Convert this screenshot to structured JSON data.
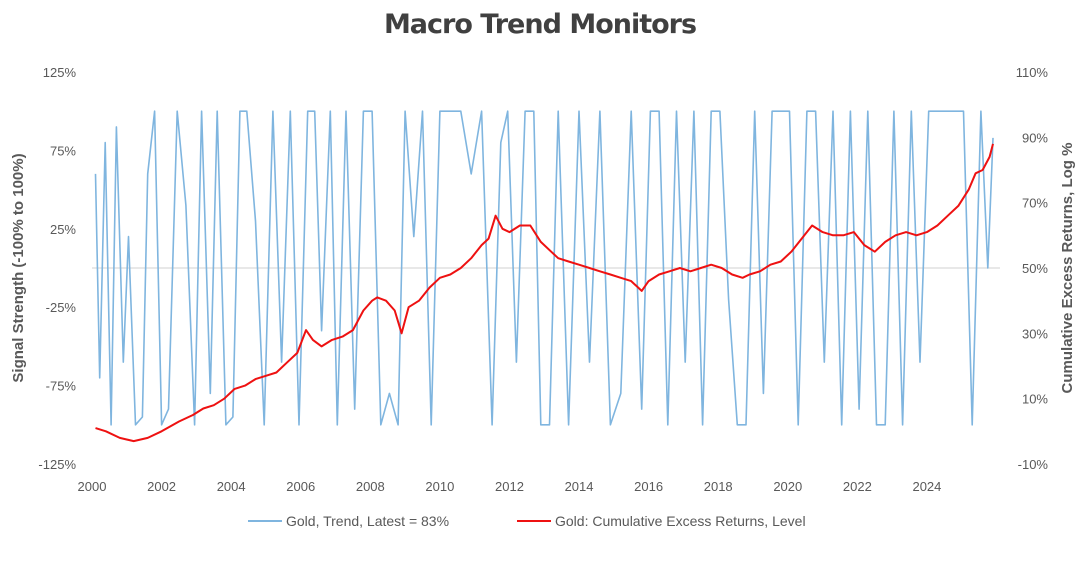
{
  "chart_data": {
    "type": "line",
    "title": "Macro Trend Monitors",
    "ylabel_left": "Signal Strength (-100% to 100%)",
    "ylabel_right": "Cumulative Excess Returns, Log %",
    "left_axis": {
      "range": [
        -125,
        125
      ],
      "ticks": [
        -125,
        -75,
        -25,
        25,
        75,
        125
      ],
      "tick_labels": [
        "-125%",
        "-75%",
        "-25%",
        "25%",
        "75%",
        "125%"
      ]
    },
    "right_axis": {
      "range": [
        -10,
        110
      ],
      "ticks": [
        -10,
        10,
        30,
        50,
        70,
        90,
        110
      ],
      "tick_labels": [
        "-10%",
        "10%",
        "30%",
        "50%",
        "70%",
        "90%",
        "110%"
      ]
    },
    "x_axis": {
      "range": [
        2000,
        2026.1
      ],
      "ticks": [
        2000,
        2002,
        2004,
        2006,
        2008,
        2010,
        2012,
        2014,
        2016,
        2018,
        2020,
        2022,
        2024
      ],
      "tick_labels": [
        "2000",
        "2002",
        "2004",
        "2006",
        "2008",
        "2010",
        "2012",
        "2014",
        "2016",
        "2018",
        "2020",
        "2022",
        "2024"
      ]
    },
    "series": [
      {
        "name": "Gold, Trend, Latest = 83%",
        "axis": "left",
        "color": "#7fb5df",
        "x": [
          2000.1,
          2000.22,
          2000.38,
          2000.55,
          2000.7,
          2000.9,
          2001.05,
          2001.25,
          2001.45,
          2001.6,
          2001.8,
          2002.0,
          2002.2,
          2002.45,
          2002.7,
          2002.95,
          2003.15,
          2003.4,
          2003.6,
          2003.85,
          2004.05,
          2004.25,
          2004.45,
          2004.7,
          2004.95,
          2005.2,
          2005.45,
          2005.7,
          2005.95,
          2006.2,
          2006.4,
          2006.6,
          2006.85,
          2007.05,
          2007.3,
          2007.55,
          2007.8,
          2008.05,
          2008.3,
          2008.55,
          2008.8,
          2009.0,
          2009.25,
          2009.5,
          2009.75,
          2010.0,
          2010.3,
          2010.6,
          2010.9,
          2011.2,
          2011.5,
          2011.75,
          2011.95,
          2012.2,
          2012.45,
          2012.7,
          2012.9,
          2013.15,
          2013.4,
          2013.7,
          2014.0,
          2014.3,
          2014.6,
          2014.9,
          2015.2,
          2015.5,
          2015.8,
          2016.05,
          2016.3,
          2016.55,
          2016.8,
          2017.05,
          2017.3,
          2017.55,
          2017.8,
          2018.05,
          2018.3,
          2018.55,
          2018.8,
          2019.05,
          2019.3,
          2019.55,
          2019.8,
          2020.05,
          2020.3,
          2020.55,
          2020.8,
          2021.05,
          2021.3,
          2021.55,
          2021.8,
          2022.05,
          2022.3,
          2022.55,
          2022.8,
          2023.05,
          2023.3,
          2023.55,
          2023.8,
          2024.05,
          2024.3,
          2024.55,
          2024.8,
          2025.05,
          2025.3,
          2025.55,
          2025.75,
          2025.9
        ],
        "values": [
          60,
          -70,
          80,
          -100,
          90,
          -60,
          20,
          -100,
          -95,
          60,
          100,
          -100,
          -90,
          100,
          40,
          -100,
          100,
          -80,
          100,
          -100,
          -95,
          100,
          100,
          30,
          -100,
          100,
          -60,
          100,
          -100,
          100,
          100,
          -40,
          100,
          -100,
          100,
          -90,
          100,
          100,
          -100,
          -80,
          -100,
          100,
          20,
          100,
          -100,
          100,
          100,
          100,
          60,
          100,
          -100,
          80,
          100,
          -60,
          100,
          100,
          -100,
          -100,
          100,
          -100,
          100,
          -60,
          100,
          -100,
          -80,
          100,
          -90,
          100,
          100,
          -100,
          100,
          -60,
          100,
          -100,
          100,
          100,
          -20,
          -100,
          -100,
          100,
          -80,
          100,
          100,
          100,
          -100,
          100,
          100,
          -60,
          100,
          -100,
          100,
          -90,
          100,
          -100,
          -100,
          100,
          -100,
          100,
          -60,
          100,
          100,
          100,
          100,
          100,
          -100,
          100,
          0,
          83
        ]
      },
      {
        "name": "Gold: Cumulative Excess Returns, Level",
        "axis": "right",
        "color": "#ee1111",
        "x": [
          2000.1,
          2000.4,
          2000.8,
          2001.2,
          2001.6,
          2002.0,
          2002.5,
          2002.9,
          2003.2,
          2003.5,
          2003.8,
          2004.1,
          2004.4,
          2004.7,
          2005.0,
          2005.3,
          2005.6,
          2005.9,
          2006.15,
          2006.35,
          2006.6,
          2006.9,
          2007.2,
          2007.5,
          2007.8,
          2008.05,
          2008.2,
          2008.45,
          2008.7,
          2008.9,
          2009.1,
          2009.4,
          2009.7,
          2010.0,
          2010.3,
          2010.6,
          2010.9,
          2011.2,
          2011.4,
          2011.6,
          2011.8,
          2012.0,
          2012.3,
          2012.6,
          2012.9,
          2013.2,
          2013.4,
          2013.7,
          2014.0,
          2014.3,
          2014.6,
          2014.9,
          2015.2,
          2015.5,
          2015.8,
          2016.0,
          2016.3,
          2016.6,
          2016.9,
          2017.2,
          2017.5,
          2017.8,
          2018.1,
          2018.4,
          2018.7,
          2018.9,
          2019.2,
          2019.5,
          2019.8,
          2020.1,
          2020.4,
          2020.7,
          2021.0,
          2021.3,
          2021.6,
          2021.9,
          2022.2,
          2022.5,
          2022.8,
          2023.1,
          2023.4,
          2023.7,
          2024.0,
          2024.3,
          2024.6,
          2024.9,
          2025.2,
          2025.4,
          2025.6,
          2025.8,
          2025.9
        ],
        "values": [
          1,
          0,
          -2,
          -3,
          -2,
          0,
          3,
          5,
          7,
          8,
          10,
          13,
          14,
          16,
          17,
          18,
          21,
          24,
          31,
          28,
          26,
          28,
          29,
          31,
          37,
          40,
          41,
          40,
          37,
          30,
          38,
          40,
          44,
          47,
          48,
          50,
          53,
          57,
          59,
          66,
          62,
          61,
          63,
          63,
          58,
          55,
          53,
          52,
          51,
          50,
          49,
          48,
          47,
          46,
          43,
          46,
          48,
          49,
          50,
          49,
          50,
          51,
          50,
          48,
          47,
          48,
          49,
          51,
          52,
          55,
          59,
          63,
          61,
          60,
          60,
          61,
          57,
          55,
          58,
          60,
          61,
          60,
          61,
          63,
          66,
          69,
          74,
          79,
          80,
          84,
          88
        ]
      }
    ],
    "legend": {
      "position": "bottom-center"
    }
  }
}
